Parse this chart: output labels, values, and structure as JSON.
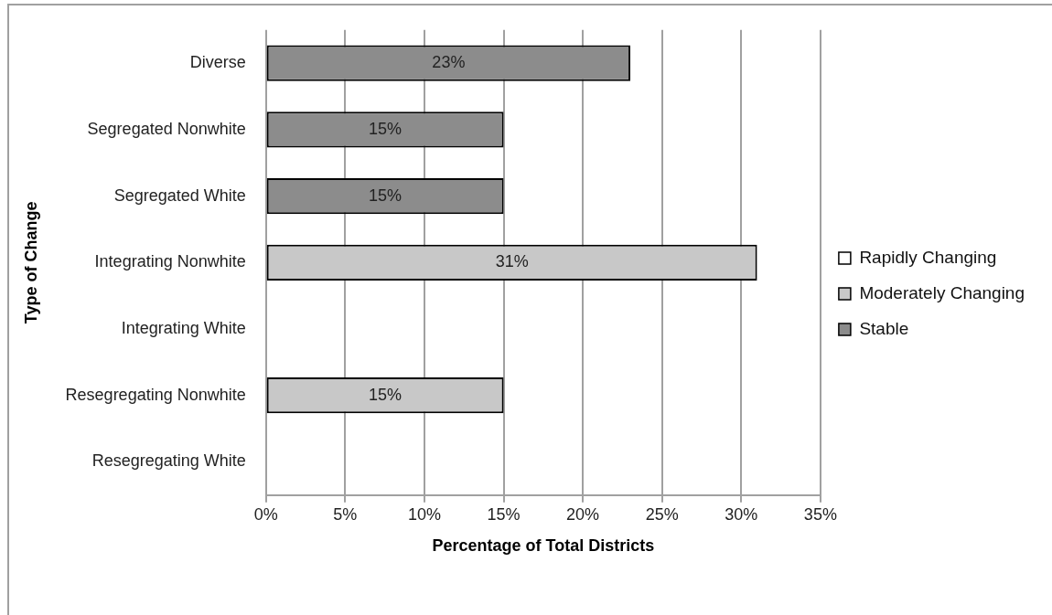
{
  "chart_data": {
    "type": "bar",
    "orientation": "horizontal",
    "stacked": true,
    "xlabel": "Percentage of Total Districts",
    "ylabel": "Type of Change",
    "categories": [
      "Diverse",
      "Segregated Nonwhite",
      "Segregated White",
      "Integrating Nonwhite",
      "Integrating White",
      "Resegregating Nonwhite",
      "Resegregating White"
    ],
    "series": [
      {
        "name": "Rapidly Changing",
        "color": "#ffffff",
        "values": [
          null,
          null,
          null,
          null,
          null,
          null,
          null
        ]
      },
      {
        "name": "Moderately Changing",
        "color": "#c8c8c8",
        "values": [
          null,
          null,
          null,
          31,
          null,
          15,
          null
        ],
        "value_labels": [
          null,
          null,
          null,
          "31%",
          null,
          "15%",
          null
        ]
      },
      {
        "name": "Stable",
        "color": "#8c8c8c",
        "values": [
          23,
          15,
          15,
          null,
          null,
          null,
          null
        ],
        "value_labels": [
          "23%",
          "15%",
          "15%",
          null,
          null,
          null,
          null
        ]
      }
    ],
    "xlim": [
      0,
      35
    ],
    "xticks": [
      {
        "value": 0,
        "label": "0%"
      },
      {
        "value": 5,
        "label": "5%"
      },
      {
        "value": 10,
        "label": "10%"
      },
      {
        "value": 15,
        "label": "15%"
      },
      {
        "value": 20,
        "label": "20%"
      },
      {
        "value": 25,
        "label": "25%"
      },
      {
        "value": 30,
        "label": "30%"
      },
      {
        "value": 35,
        "label": "35%"
      }
    ],
    "grid": "x",
    "legend": "right"
  }
}
